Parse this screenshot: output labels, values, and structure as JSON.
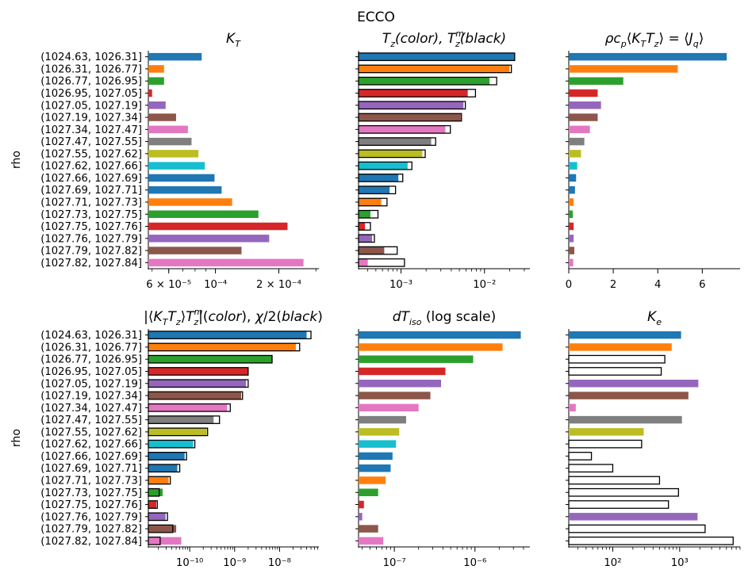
{
  "suptitle": "ECCO",
  "colors": [
    "#1f77b4",
    "#ff7f0e",
    "#2ca02c",
    "#d62728",
    "#9467bd",
    "#8c564b",
    "#e377c2",
    "#7f7f7f",
    "#bcbd22",
    "#17becf",
    "#1f77b4",
    "#1f77b4",
    "#ff7f0e",
    "#2ca02c",
    "#d62728",
    "#9467bd",
    "#8c564b",
    "#e377c2"
  ],
  "chart_data": [
    {
      "id": "kt",
      "type": "bar",
      "orientation": "horizontal",
      "xscale": "log",
      "title": "K_T",
      "ylabel": "rho",
      "xlim": [
        4.8e-05,
        0.00031
      ],
      "xticks": [
        {
          "v": 6e-05,
          "label": "6 × 10⁻⁵"
        },
        {
          "v": 0.0001,
          "label": "10⁻⁴"
        },
        {
          "v": 0.0002,
          "label": "2 × 10⁻⁴"
        }
      ],
      "categories": [
        "(1024.63, 1026.31]",
        "(1026.31, 1026.77]",
        "(1026.77, 1026.95]",
        "(1026.95, 1027.05]",
        "(1027.05, 1027.19]",
        "(1027.19, 1027.34]",
        "(1027.34, 1027.47]",
        "(1027.47, 1027.55]",
        "(1027.55, 1027.62]",
        "(1027.62, 1027.66]",
        "(1027.66, 1027.69]",
        "(1027.69, 1027.71]",
        "(1027.71, 1027.73]",
        "(1027.73, 1027.75]",
        "(1027.75, 1027.76]",
        "(1027.76, 1027.79]",
        "(1027.79, 1027.82]",
        "(1027.82, 1027.84]"
      ],
      "values": [
        8.6e-05,
        5.7e-05,
        5.7e-05,
        5e-05,
        5.8e-05,
        6.5e-05,
        7.4e-05,
        7.7e-05,
        8.3e-05,
        8.9e-05,
        9.9e-05,
        0.000107,
        0.00012,
        0.00016,
        0.00022,
        0.00018,
        0.000133,
        0.000262
      ]
    },
    {
      "id": "tz",
      "type": "bar",
      "orientation": "horizontal",
      "xscale": "log",
      "title": "T_z(color), T_z^m(black)",
      "xlim": [
        0.00031,
        0.035
      ],
      "xticks": [
        {
          "v": 0.001,
          "label": "10⁻³"
        },
        {
          "v": 0.01,
          "label": "10⁻²"
        }
      ],
      "series": [
        {
          "name": "color",
          "values": [
            0.023,
            0.02,
            0.0115,
            0.0063,
            0.0056,
            0.0052,
            0.0034,
            0.0023,
            0.0018,
            0.0012,
            0.00093,
            0.00073,
            0.00058,
            0.00043,
            0.00037,
            0.00045,
            0.00063,
            0.0004
          ]
        },
        {
          "name": "black",
          "values": [
            0.023,
            0.021,
            0.014,
            0.0078,
            0.0059,
            0.0053,
            0.0039,
            0.0026,
            0.00195,
            0.00135,
            0.00105,
            0.00086,
            0.00068,
            0.00053,
            0.00043,
            0.00048,
            0.0009,
            0.0011
          ]
        }
      ]
    },
    {
      "id": "jq",
      "type": "bar",
      "orientation": "horizontal",
      "xscale": "linear",
      "title": "ρc_p⟨K_T T_z⟩ = ⟨J_q⟩",
      "xlim": [
        0,
        7.7
      ],
      "xticks": [
        {
          "v": 0,
          "label": "0"
        },
        {
          "v": 2,
          "label": "2"
        },
        {
          "v": 4,
          "label": "4"
        },
        {
          "v": 6,
          "label": "6"
        }
      ],
      "values": [
        7.1,
        4.9,
        2.45,
        1.3,
        1.45,
        1.3,
        0.95,
        0.7,
        0.55,
        0.38,
        0.33,
        0.28,
        0.22,
        0.18,
        0.22,
        0.22,
        0.25,
        0.2
      ]
    },
    {
      "id": "chi",
      "type": "bar",
      "orientation": "horizontal",
      "xscale": "log",
      "title": "|⟨K_T T_z⟩ T_z^m| (color), χ/2 (black)",
      "ylabel": "rho",
      "xlim": [
        1.2e-11,
        7.5e-08
      ],
      "xticks": [
        {
          "v": 1e-10,
          "label": "10⁻¹⁰"
        },
        {
          "v": 1e-09,
          "label": "10⁻⁹"
        },
        {
          "v": 1e-08,
          "label": "10⁻⁸"
        }
      ],
      "series": [
        {
          "name": "color",
          "values": [
            4e-08,
            2.3e-08,
            7e-09,
            2e-09,
            1.8e-09,
            1.4e-09,
            6.8e-10,
            3.4e-10,
            2.4e-10,
            1.2e-10,
            7.7e-11,
            5.3e-11,
            3.4e-11,
            2.5e-11,
            1.8e-11,
            2.9e-11,
            5e-11,
            6.5e-11
          ]
        },
        {
          "name": "black",
          "values": [
            5e-08,
            2.8e-08,
            6.8e-09,
            2e-09,
            2e-09,
            1.5e-09,
            8e-10,
            4.6e-10,
            2.5e-10,
            1.3e-10,
            8.5e-11,
            6e-11,
            3.7e-11,
            2.1e-11,
            1.9e-11,
            3.2e-11,
            4.2e-11,
            2.2e-11
          ]
        }
      ]
    },
    {
      "id": "dtiso",
      "type": "bar",
      "orientation": "horizontal",
      "xscale": "log",
      "title": "dT_iso (log scale)",
      "xlim": [
        3.6e-08,
        4.8e-06
      ],
      "xticks": [
        {
          "v": 1e-07,
          "label": "10⁻⁷"
        },
        {
          "v": 1e-06,
          "label": "10⁻⁶"
        }
      ],
      "values": [
        3.7e-06,
        2.2e-06,
        9.5e-07,
        4.3e-07,
        3.8e-07,
        2.8e-07,
        2e-07,
        1.4e-07,
        1.15e-07,
        1.05e-07,
        9.5e-08,
        9e-08,
        7.8e-08,
        6.3e-08,
        4.2e-08,
        4e-08,
        6.3e-08,
        7.3e-08
      ]
    },
    {
      "id": "ke",
      "type": "bar",
      "orientation": "horizontal",
      "xscale": "log",
      "title": "K_e",
      "xlim": [
        22,
        8000
      ],
      "xticks": [
        {
          "v": 100,
          "label": "10²"
        },
        {
          "v": 1000,
          "label": "10³"
        }
      ],
      "values": [
        1050,
        760,
        600,
        530,
        1900,
        1350,
        28,
        1080,
        290,
        270,
        48,
        100,
        500,
        960,
        680,
        1850,
        2400,
        6300
      ],
      "filled": [
        true,
        true,
        false,
        false,
        true,
        true,
        true,
        true,
        true,
        false,
        false,
        false,
        false,
        false,
        false,
        true,
        false,
        false
      ]
    }
  ]
}
